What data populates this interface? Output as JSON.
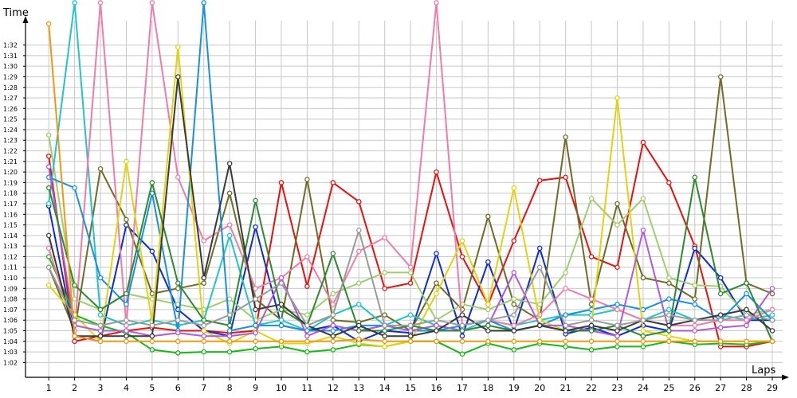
{
  "chart_data": {
    "type": "line",
    "title": "",
    "xlabel": "Laps",
    "ylabel": "Time",
    "x": [
      1,
      2,
      3,
      4,
      5,
      6,
      7,
      8,
      9,
      10,
      11,
      12,
      13,
      14,
      15,
      16,
      17,
      18,
      19,
      20,
      21,
      22,
      23,
      24,
      25,
      26,
      27,
      28,
      29
    ],
    "y_ticks": [
      62,
      63,
      64,
      65,
      66,
      67,
      68,
      69,
      70,
      71,
      72,
      73,
      74,
      75,
      76,
      77,
      78,
      79,
      80,
      81,
      82,
      83,
      84,
      85,
      86,
      87,
      88,
      89,
      90,
      91,
      92
    ],
    "y_tick_labels": [
      "1:02",
      "1:03",
      "1:04",
      "1:05",
      "1:06",
      "1:07",
      "1:08",
      "1:09",
      "1:10",
      "1:11",
      "1:12",
      "1:13",
      "1:14",
      "1:15",
      "1:16",
      "1:17",
      "1:18",
      "1:19",
      "1:20",
      "1:21",
      "1:22",
      "1:23",
      "1:24",
      "1:25",
      "1:26",
      "1:27",
      "1:28",
      "1:29",
      "1:30",
      "1:31",
      "1:32"
    ],
    "ylim": [
      60.6,
      94.3
    ],
    "xlim": [
      0.1,
      29.4
    ],
    "grid": true,
    "series": [
      {
        "color": "#e8100e",
        "values": [
          81.5,
          64.0,
          64.5,
          65.0,
          65.3,
          65.0,
          65.0,
          64.8,
          65.0,
          79.0,
          69.2,
          79.0,
          77.2,
          69.0,
          69.5,
          80.0,
          72.0,
          67.5,
          73.5,
          79.2,
          79.5,
          72.0,
          71.0,
          82.8,
          79.0,
          73.0,
          63.5,
          63.5,
          64.0
        ]
      },
      {
        "color": "#0c2cd0",
        "values": [
          76.8,
          64.5,
          64.0,
          75.0,
          72.5,
          67.0,
          65.0,
          64.5,
          74.8,
          65.5,
          65.0,
          65.5,
          64.0,
          65.0,
          64.8,
          72.3,
          64.5,
          71.5,
          65.0,
          72.8,
          64.7,
          65.3,
          64.5,
          65.5,
          65.0,
          72.8,
          70.0,
          66.0,
          66.0
        ]
      },
      {
        "color": "#17b817",
        "values": [
          72.0,
          66.5,
          65.5,
          64.8,
          63.2,
          62.9,
          63.0,
          63.0,
          63.3,
          63.5,
          63.0,
          63.2,
          63.7,
          63.5,
          64.0,
          64.0,
          62.8,
          63.8,
          63.2,
          63.8,
          63.5,
          63.2,
          63.5,
          63.5,
          64.0,
          63.7,
          63.8,
          63.7,
          64.0
        ]
      },
      {
        "color": "#6e6c26",
        "values": [
          71.0,
          65.0,
          80.3,
          75.5,
          68.5,
          69.0,
          69.5,
          78.0,
          68.0,
          66.0,
          79.3,
          66.0,
          65.8,
          66.5,
          65.0,
          69.5,
          67.0,
          75.8,
          67.5,
          66.0,
          83.3,
          67.5,
          77.0,
          70.0,
          69.5,
          68.0,
          89.0,
          69.5,
          68.5
        ]
      },
      {
        "color": "#a0ce6c",
        "values": [
          83.5,
          68.0,
          67.0,
          68.5,
          68.0,
          67.5,
          67.0,
          68.0,
          66.0,
          67.0,
          66.5,
          68.5,
          69.5,
          70.5,
          70.5,
          66.0,
          67.5,
          67.0,
          68.0,
          67.5,
          70.5,
          77.5,
          75.0,
          77.5,
          70.0,
          69.3,
          69.2,
          66.5,
          67.0
        ]
      },
      {
        "color": "#23c4c4",
        "values": [
          77.0,
          96.0,
          66.5,
          65.5,
          66.0,
          65.5,
          66.0,
          74.0,
          65.5,
          66.0,
          65.0,
          66.5,
          67.5,
          65.5,
          66.5,
          65.5,
          65.0,
          66.0,
          65.5,
          66.0,
          66.5,
          66.5,
          67.0,
          66.0,
          67.0,
          66.0,
          66.5,
          66.0,
          66.5
        ]
      },
      {
        "color": "#f07ca8",
        "values": [
          72.8,
          65.0,
          96.0,
          65.5,
          96.0,
          79.5,
          73.5,
          75.0,
          69.0,
          70.0,
          72.0,
          67.5,
          72.5,
          73.8,
          71.0,
          96.0,
          65.5,
          66.0,
          65.5,
          66.5,
          69.0,
          68.0,
          67.0,
          66.0,
          65.5,
          65.5,
          66.0,
          66.0,
          67.0
        ]
      },
      {
        "color": "#1890e0",
        "values": [
          79.5,
          78.5,
          70.0,
          67.5,
          78.0,
          65.0,
          96.0,
          65.0,
          65.5,
          65.5,
          65.0,
          65.0,
          65.5,
          65.5,
          65.0,
          65.0,
          65.5,
          66.0,
          65.0,
          65.5,
          66.5,
          67.0,
          67.5,
          67.0,
          68.0,
          67.5,
          66.0,
          68.5,
          66.0
        ]
      },
      {
        "color": "#e0d410",
        "values": [
          69.3,
          66.5,
          64.0,
          81.0,
          65.8,
          91.8,
          65.0,
          63.8,
          65.0,
          63.8,
          63.8,
          64.5,
          63.8,
          63.5,
          64.0,
          68.5,
          73.5,
          67.5,
          78.5,
          66.0,
          65.0,
          65.5,
          87.0,
          65.0,
          64.5,
          64.0,
          64.0,
          64.0,
          64.0
        ]
      },
      {
        "color": "#b05ad8",
        "values": [
          80.5,
          65.5,
          65.0,
          65.0,
          64.5,
          64.8,
          64.5,
          64.5,
          64.8,
          70.0,
          64.5,
          65.5,
          65.0,
          65.5,
          65.0,
          65.5,
          65.0,
          65.5,
          70.5,
          65.5,
          65.5,
          65.0,
          64.5,
          74.5,
          65.0,
          65.0,
          65.3,
          65.5,
          69.0
        ]
      },
      {
        "color": "#2c8a30",
        "values": [
          78.5,
          69.3,
          67.0,
          68.5,
          79.0,
          69.5,
          66.0,
          65.5,
          77.3,
          67.0,
          65.5,
          72.3,
          65.0,
          65.0,
          65.5,
          65.0,
          65.0,
          65.5,
          65.0,
          65.5,
          65.0,
          65.0,
          65.5,
          64.5,
          65.0,
          79.5,
          68.5,
          69.5,
          64.0
        ]
      },
      {
        "color": "#3a3a3a",
        "values": [
          74.0,
          64.5,
          64.5,
          64.5,
          64.5,
          89.0,
          70.0,
          80.8,
          67.0,
          67.5,
          65.5,
          64.5,
          65.5,
          64.5,
          64.5,
          65.0,
          66.5,
          65.0,
          65.0,
          65.5,
          65.0,
          65.5,
          65.0,
          66.0,
          65.5,
          66.0,
          66.5,
          67.0,
          65.0
        ]
      },
      {
        "color": "#ee9a10",
        "values": [
          94.0,
          64.5,
          64.0,
          64.0,
          64.0,
          64.0,
          64.0,
          64.0,
          64.0,
          64.0,
          64.0,
          64.0,
          64.2,
          64.0,
          64.0,
          64.0,
          64.0,
          64.0,
          64.0,
          64.0,
          64.0,
          64.0,
          64.0,
          64.0,
          64.0,
          64.0,
          64.0,
          64.0,
          64.0
        ]
      },
      {
        "color": "#9a9a9a",
        "values": [
          71.0,
          66.0,
          65.5,
          66.0,
          65.5,
          66.0,
          65.5,
          66.5,
          68.0,
          69.5,
          65.5,
          66.5,
          74.5,
          65.5,
          65.5,
          66.0,
          65.5,
          66.0,
          66.5,
          71.0,
          65.5,
          66.0,
          65.5,
          66.0,
          66.5,
          66.0,
          66.0,
          66.5,
          66.0
        ]
      }
    ]
  },
  "style": {
    "axis_color": "#000000",
    "grid_color": "#c8c8c8",
    "background": "#ffffff"
  }
}
